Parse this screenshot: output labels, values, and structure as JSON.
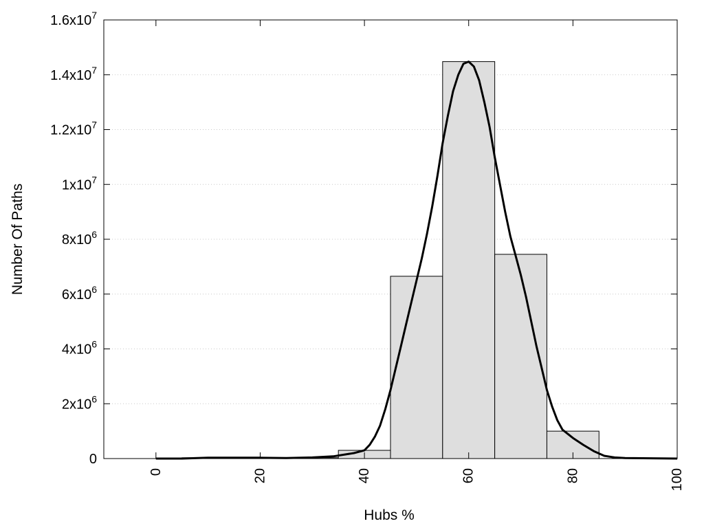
{
  "chart_data": {
    "type": "bar",
    "xlabel": "Hubs %",
    "ylabel": "Number Of Paths",
    "xlim": [
      -10,
      100
    ],
    "ylim": [
      0,
      16000000
    ],
    "grid": "horizontal-dotted",
    "x_ticks": [
      "0",
      "20",
      "40",
      "60",
      "80",
      "100"
    ],
    "y_ticks": [
      {
        "value": 0,
        "base": "0",
        "exp": ""
      },
      {
        "value": 2000000,
        "base": "2x10",
        "exp": "6"
      },
      {
        "value": 4000000,
        "base": "4x10",
        "exp": "6"
      },
      {
        "value": 6000000,
        "base": "6x10",
        "exp": "6"
      },
      {
        "value": 8000000,
        "base": "8x10",
        "exp": "6"
      },
      {
        "value": 10000000,
        "base": "1x10",
        "exp": "7"
      },
      {
        "value": 12000000,
        "base": "1.2x10",
        "exp": "7"
      },
      {
        "value": 14000000,
        "base": "1.4x10",
        "exp": "7"
      },
      {
        "value": 16000000,
        "base": "1.6x10",
        "exp": "7"
      }
    ],
    "bins": [
      {
        "x0": 0,
        "x1": 5,
        "value": 0
      },
      {
        "x0": 5,
        "x1": 15,
        "value": 30000
      },
      {
        "x0": 15,
        "x1": 25,
        "value": 30000
      },
      {
        "x0": 25,
        "x1": 35,
        "value": 30000
      },
      {
        "x0": 35,
        "x1": 45,
        "value": 300000
      },
      {
        "x0": 45,
        "x1": 55,
        "value": 6650000
      },
      {
        "x0": 55,
        "x1": 65,
        "value": 14480000
      },
      {
        "x0": 65,
        "x1": 75,
        "value": 7450000
      },
      {
        "x0": 75,
        "x1": 85,
        "value": 1000000
      }
    ],
    "curve": {
      "x": [
        0,
        5,
        10,
        15,
        20,
        25,
        30,
        34,
        38,
        40,
        41,
        42,
        43,
        44,
        45,
        46,
        47,
        48,
        49,
        50,
        51,
        52,
        53,
        54,
        55,
        56,
        57,
        58,
        59,
        60,
        61,
        62,
        63,
        64,
        65,
        66,
        67,
        68,
        69,
        70,
        71,
        72,
        73,
        74,
        75,
        76,
        77,
        78,
        79,
        80,
        82,
        84,
        86,
        88,
        90,
        95,
        100
      ],
      "y": [
        0,
        0,
        30000,
        30000,
        30000,
        20000,
        40000,
        80000,
        200000,
        300000,
        500000,
        800000,
        1200000,
        1800000,
        2500000,
        3300000,
        4100000,
        4900000,
        5700000,
        6500000,
        7300000,
        8200000,
        9200000,
        10300000,
        11500000,
        12500000,
        13400000,
        14000000,
        14400000,
        14480000,
        14300000,
        13800000,
        13000000,
        12100000,
        11000000,
        10000000,
        9000000,
        8100000,
        7400000,
        6700000,
        5900000,
        5000000,
        4100000,
        3300000,
        2500000,
        1900000,
        1400000,
        1050000,
        900000,
        750000,
        500000,
        270000,
        100000,
        40000,
        20000,
        10000,
        0
      ]
    }
  }
}
